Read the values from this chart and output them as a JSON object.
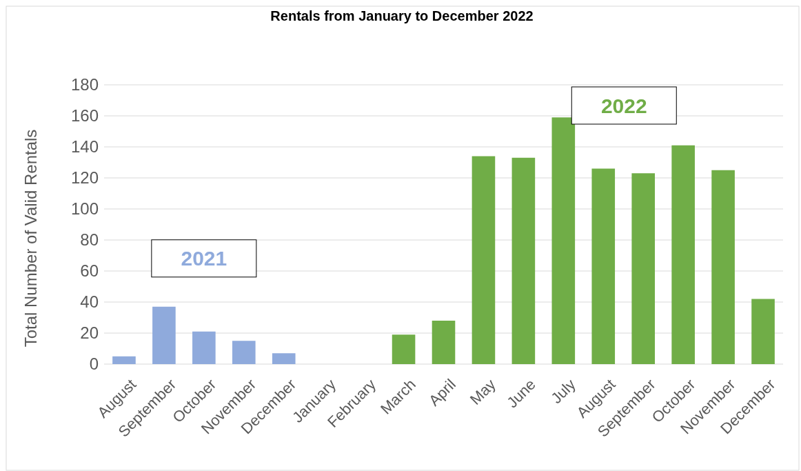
{
  "chart_data": {
    "type": "bar",
    "title": "Rentals from January to December 2022",
    "ylabel": "Total Number of Valid Rentals",
    "categories": [
      "August",
      "September",
      "October",
      "November",
      "December",
      "January",
      "February",
      "March",
      "April",
      "May",
      "June",
      "July",
      "August",
      "September",
      "October",
      "November",
      "December"
    ],
    "series": [
      {
        "name": "2021",
        "color": "#8faadc",
        "values": [
          5,
          37,
          21,
          15,
          7,
          null,
          null,
          null,
          null,
          null,
          null,
          null,
          null,
          null,
          null,
          null,
          null
        ]
      },
      {
        "name": "2022",
        "color": "#70ad47",
        "values": [
          null,
          null,
          null,
          null,
          null,
          0,
          0,
          19,
          28,
          134,
          133,
          159,
          126,
          123,
          141,
          125,
          42
        ]
      }
    ],
    "ylim": [
      0,
      180
    ],
    "yticks": [
      0,
      20,
      40,
      60,
      80,
      100,
      120,
      140,
      160,
      180
    ],
    "grid": "y"
  }
}
